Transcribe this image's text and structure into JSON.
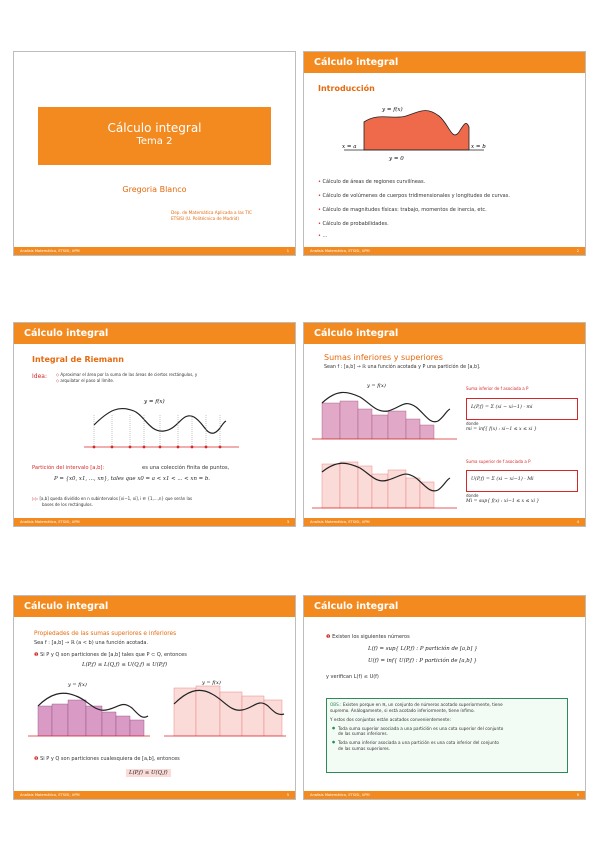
{
  "footer_text": "Analisis Matemático, ETSISI, UPM",
  "slide1": {
    "title": "Cálculo integral",
    "subtitle": "Tema 2",
    "author": "Gregoria Blanco",
    "dept_line1": "Dep. de Matemática Aplicada a las TIC",
    "dept_line2": "ETSISI (U. Politécnica de Madrid)",
    "page": "1"
  },
  "slide2": {
    "header": "Cálculo integral",
    "section": "Introducción",
    "fig_top": "y = f(x)",
    "fig_left": "x = a",
    "fig_right": "x = b",
    "fig_bottom": "y = 0",
    "bullets": [
      "Cálculo de áreas de regiones curvilíneas.",
      "Cálculo de volúmenes de cuerpos tridimensionales y longitudes de curvas.",
      "Cálculo de magnitudes físicas: trabajo, momentos de inercia, etc.",
      "Cálculo de probabilidades.",
      "..."
    ],
    "page": "2"
  },
  "slide3": {
    "header": "Cálculo integral",
    "section": "Integral de Riemann",
    "idea_label": "Idea:",
    "idea1": "Aproximar el área por la suma de las áreas de ciertos rectángulos, y",
    "idea2": "arquilatar el paso al límite.",
    "fig_label": "y = f(x)",
    "partition_text": "Partición del intervalo [a,b]:",
    "partition_desc": "es una colección finita de puntos,",
    "partition_formula": "P = {x0, x1, ..., xn}, tales que  x0 = a < x1 < ... < xn = b.",
    "note1": "[a,b] queda dividido en n subintervalos    [xi−1, xi],   i ∈ {1,...,n}   que serán las",
    "note2": "bases de los rectángulos.",
    "page": "3"
  },
  "slide4": {
    "header": "Cálculo integral",
    "section": "Sumas inferiores y superiores",
    "intro": "Sean f : [a,b] → ℝ una función acotada  y   P una partición de [a,b].",
    "lower_title": "Suma inferior de f asociada a P",
    "lower_formula": "L(P,f) = Σ (xi − xi−1) · mi",
    "lower_donde": "donde",
    "lower_def": "mi = inf{ f(x) : xi−1 ≤ x ≤ xi }",
    "upper_title": "Suma superior de f asociada a P",
    "upper_formula": "U(P,f) = Σ (xi − xi−1) · Mi",
    "upper_donde": "donde",
    "upper_def": "Mi = sup{ f(x) : xi−1 ≤ x ≤ xi }",
    "fig_label": "y = f(x)",
    "page": "4"
  },
  "slide5": {
    "header": "Cálculo integral",
    "section": "Propiedades de las sumas superiores e inferiores",
    "sea": "Sea    f : [a,b] → ℝ    (a < b)   una función acotada.",
    "prop1": "Si   P y Q son particiones de [a,b] tales que  P ⊂ Q,  entonces",
    "prop1_formula": "L(P,f) ≤  L(Q,f) ≤ U(Q,f)  ≤  U(P,f)",
    "fig_label": "y = f(x)",
    "prop2": "Si   P y Q son particiones cualesquiera de [a,b], entonces",
    "prop2_formula": "L(P,f) ≤ U(Q,f)",
    "page": "5"
  },
  "slide6": {
    "header": "Cálculo integral",
    "exist": "Existen los siguientes números",
    "Lf": "L(f) =   sup{ L(P,f) : P partición de [a,b] }",
    "Uf": "U(f) =   inf{ U(P,f) : P partición de [a,b] }",
    "verif": "y verifican     L(f) ≤ U(f)",
    "obs_label": "OBS.:",
    "obs1": "Existen porque en ℝ, un conjunto de números acotado superiormente, tiene",
    "obs2": "supremo. Análogamente, si está acotado inferiormente, tiene ínfimo.",
    "obs3": "Y estos dos conjuntos están acotados convenientemente:",
    "obs4a": "Toda suma superior asociada a una partición es una cota superior del conjunto",
    "obs4b": "de las sumas inferiores.",
    "obs5a": "Toda suma inferior asociada a una partición es una cota inferior del conjunto",
    "obs5b": "de las sumas superiores.",
    "page": "6"
  },
  "colors": {
    "accent": "#f28a1f",
    "red": "#d62828",
    "fill_orange": "#ef6a4a",
    "fill_pink": "#e2a8c8"
  }
}
